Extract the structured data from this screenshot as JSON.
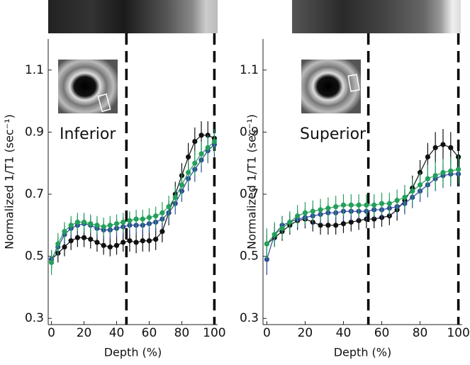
{
  "chart_data": [
    {
      "type": "line",
      "xlabel": "Depth (%)",
      "ylabel": "Normalized 1/T1 (sec⁻¹)",
      "annotation": "Inferior",
      "xlim": [
        -2,
        102
      ],
      "ylim": [
        0.28,
        1.2
      ],
      "xticks": [
        0,
        20,
        40,
        60,
        80,
        100
      ],
      "yticks": [
        0.3,
        0.5,
        0.7,
        0.9,
        1.1
      ],
      "vlines": [
        46,
        100
      ],
      "x": [
        0,
        4,
        8,
        12,
        16,
        20,
        24,
        28,
        32,
        36,
        40,
        44,
        48,
        52,
        56,
        60,
        64,
        68,
        72,
        76,
        80,
        84,
        88,
        92,
        96,
        100
      ],
      "series": [
        {
          "color": "#111111",
          "values": [
            0.49,
            0.51,
            0.53,
            0.55,
            0.56,
            0.56,
            0.555,
            0.545,
            0.535,
            0.53,
            0.535,
            0.545,
            0.55,
            0.545,
            0.55,
            0.55,
            0.555,
            0.58,
            0.64,
            0.7,
            0.76,
            0.82,
            0.87,
            0.89,
            0.89,
            0.88
          ],
          "errors": [
            0.03,
            0.03,
            0.03,
            0.03,
            0.03,
            0.03,
            0.03,
            0.03,
            0.03,
            0.03,
            0.03,
            0.03,
            0.035,
            0.035,
            0.035,
            0.035,
            0.035,
            0.035,
            0.04,
            0.04,
            0.04,
            0.045,
            0.045,
            0.045,
            0.045,
            0.045
          ]
        },
        {
          "color": "#2e4a9a",
          "values": [
            0.49,
            0.53,
            0.57,
            0.59,
            0.6,
            0.605,
            0.6,
            0.59,
            0.585,
            0.585,
            0.59,
            0.595,
            0.6,
            0.6,
            0.6,
            0.605,
            0.61,
            0.62,
            0.64,
            0.67,
            0.71,
            0.75,
            0.78,
            0.81,
            0.84,
            0.86
          ],
          "errors": [
            0.03,
            0.03,
            0.03,
            0.03,
            0.03,
            0.03,
            0.03,
            0.03,
            0.03,
            0.03,
            0.03,
            0.03,
            0.03,
            0.03,
            0.03,
            0.03,
            0.03,
            0.03,
            0.035,
            0.035,
            0.035,
            0.04,
            0.04,
            0.04,
            0.04,
            0.04
          ]
        },
        {
          "color": "#23a05a",
          "values": [
            0.48,
            0.54,
            0.58,
            0.6,
            0.61,
            0.61,
            0.605,
            0.6,
            0.595,
            0.6,
            0.605,
            0.61,
            0.615,
            0.62,
            0.62,
            0.625,
            0.63,
            0.64,
            0.66,
            0.69,
            0.73,
            0.77,
            0.8,
            0.83,
            0.85,
            0.87
          ],
          "errors": [
            0.04,
            0.035,
            0.03,
            0.03,
            0.03,
            0.03,
            0.03,
            0.03,
            0.03,
            0.03,
            0.03,
            0.03,
            0.03,
            0.03,
            0.03,
            0.03,
            0.03,
            0.035,
            0.035,
            0.035,
            0.04,
            0.04,
            0.04,
            0.04,
            0.04,
            0.04
          ]
        }
      ]
    },
    {
      "type": "line",
      "xlabel": "Depth (%)",
      "ylabel": "Normalized 1/T1 (sec⁻¹)",
      "annotation": "Superior",
      "xlim": [
        -2,
        102
      ],
      "ylim": [
        0.28,
        1.2
      ],
      "xticks": [
        0,
        20,
        40,
        60,
        80,
        100
      ],
      "yticks": [
        0.3,
        0.5,
        0.7,
        0.9,
        1.1
      ],
      "vlines": [
        53,
        100
      ],
      "x": [
        0,
        4,
        8,
        12,
        16,
        20,
        24,
        28,
        32,
        36,
        40,
        44,
        48,
        52,
        56,
        60,
        64,
        68,
        72,
        76,
        80,
        84,
        88,
        92,
        96,
        100
      ],
      "series": [
        {
          "color": "#111111",
          "values": [
            0.54,
            0.56,
            0.58,
            0.6,
            0.615,
            0.62,
            0.61,
            0.6,
            0.6,
            0.6,
            0.605,
            0.61,
            0.615,
            0.62,
            0.62,
            0.625,
            0.63,
            0.65,
            0.68,
            0.72,
            0.77,
            0.82,
            0.85,
            0.86,
            0.85,
            0.82
          ],
          "errors": [
            0.03,
            0.03,
            0.03,
            0.03,
            0.03,
            0.03,
            0.03,
            0.03,
            0.03,
            0.03,
            0.03,
            0.03,
            0.03,
            0.03,
            0.03,
            0.03,
            0.03,
            0.035,
            0.035,
            0.04,
            0.04,
            0.045,
            0.05,
            0.05,
            0.05,
            0.05
          ]
        },
        {
          "color": "#2e4a9a",
          "values": [
            0.49,
            0.57,
            0.6,
            0.61,
            0.62,
            0.625,
            0.63,
            0.635,
            0.64,
            0.64,
            0.645,
            0.645,
            0.645,
            0.645,
            0.65,
            0.65,
            0.655,
            0.66,
            0.67,
            0.69,
            0.71,
            0.73,
            0.75,
            0.76,
            0.765,
            0.765
          ],
          "errors": [
            0.05,
            0.035,
            0.03,
            0.03,
            0.03,
            0.03,
            0.03,
            0.03,
            0.03,
            0.03,
            0.03,
            0.03,
            0.03,
            0.03,
            0.03,
            0.03,
            0.03,
            0.03,
            0.035,
            0.035,
            0.035,
            0.04,
            0.04,
            0.04,
            0.04,
            0.04
          ]
        },
        {
          "color": "#23a05a",
          "values": [
            0.54,
            0.57,
            0.59,
            0.61,
            0.63,
            0.64,
            0.645,
            0.65,
            0.655,
            0.66,
            0.665,
            0.665,
            0.665,
            0.665,
            0.665,
            0.67,
            0.67,
            0.68,
            0.69,
            0.71,
            0.73,
            0.75,
            0.76,
            0.77,
            0.775,
            0.78
          ],
          "errors": [
            0.05,
            0.04,
            0.035,
            0.035,
            0.035,
            0.035,
            0.035,
            0.035,
            0.035,
            0.035,
            0.035,
            0.035,
            0.035,
            0.035,
            0.035,
            0.035,
            0.035,
            0.035,
            0.04,
            0.04,
            0.04,
            0.045,
            0.045,
            0.045,
            0.045,
            0.045
          ]
        }
      ]
    }
  ]
}
